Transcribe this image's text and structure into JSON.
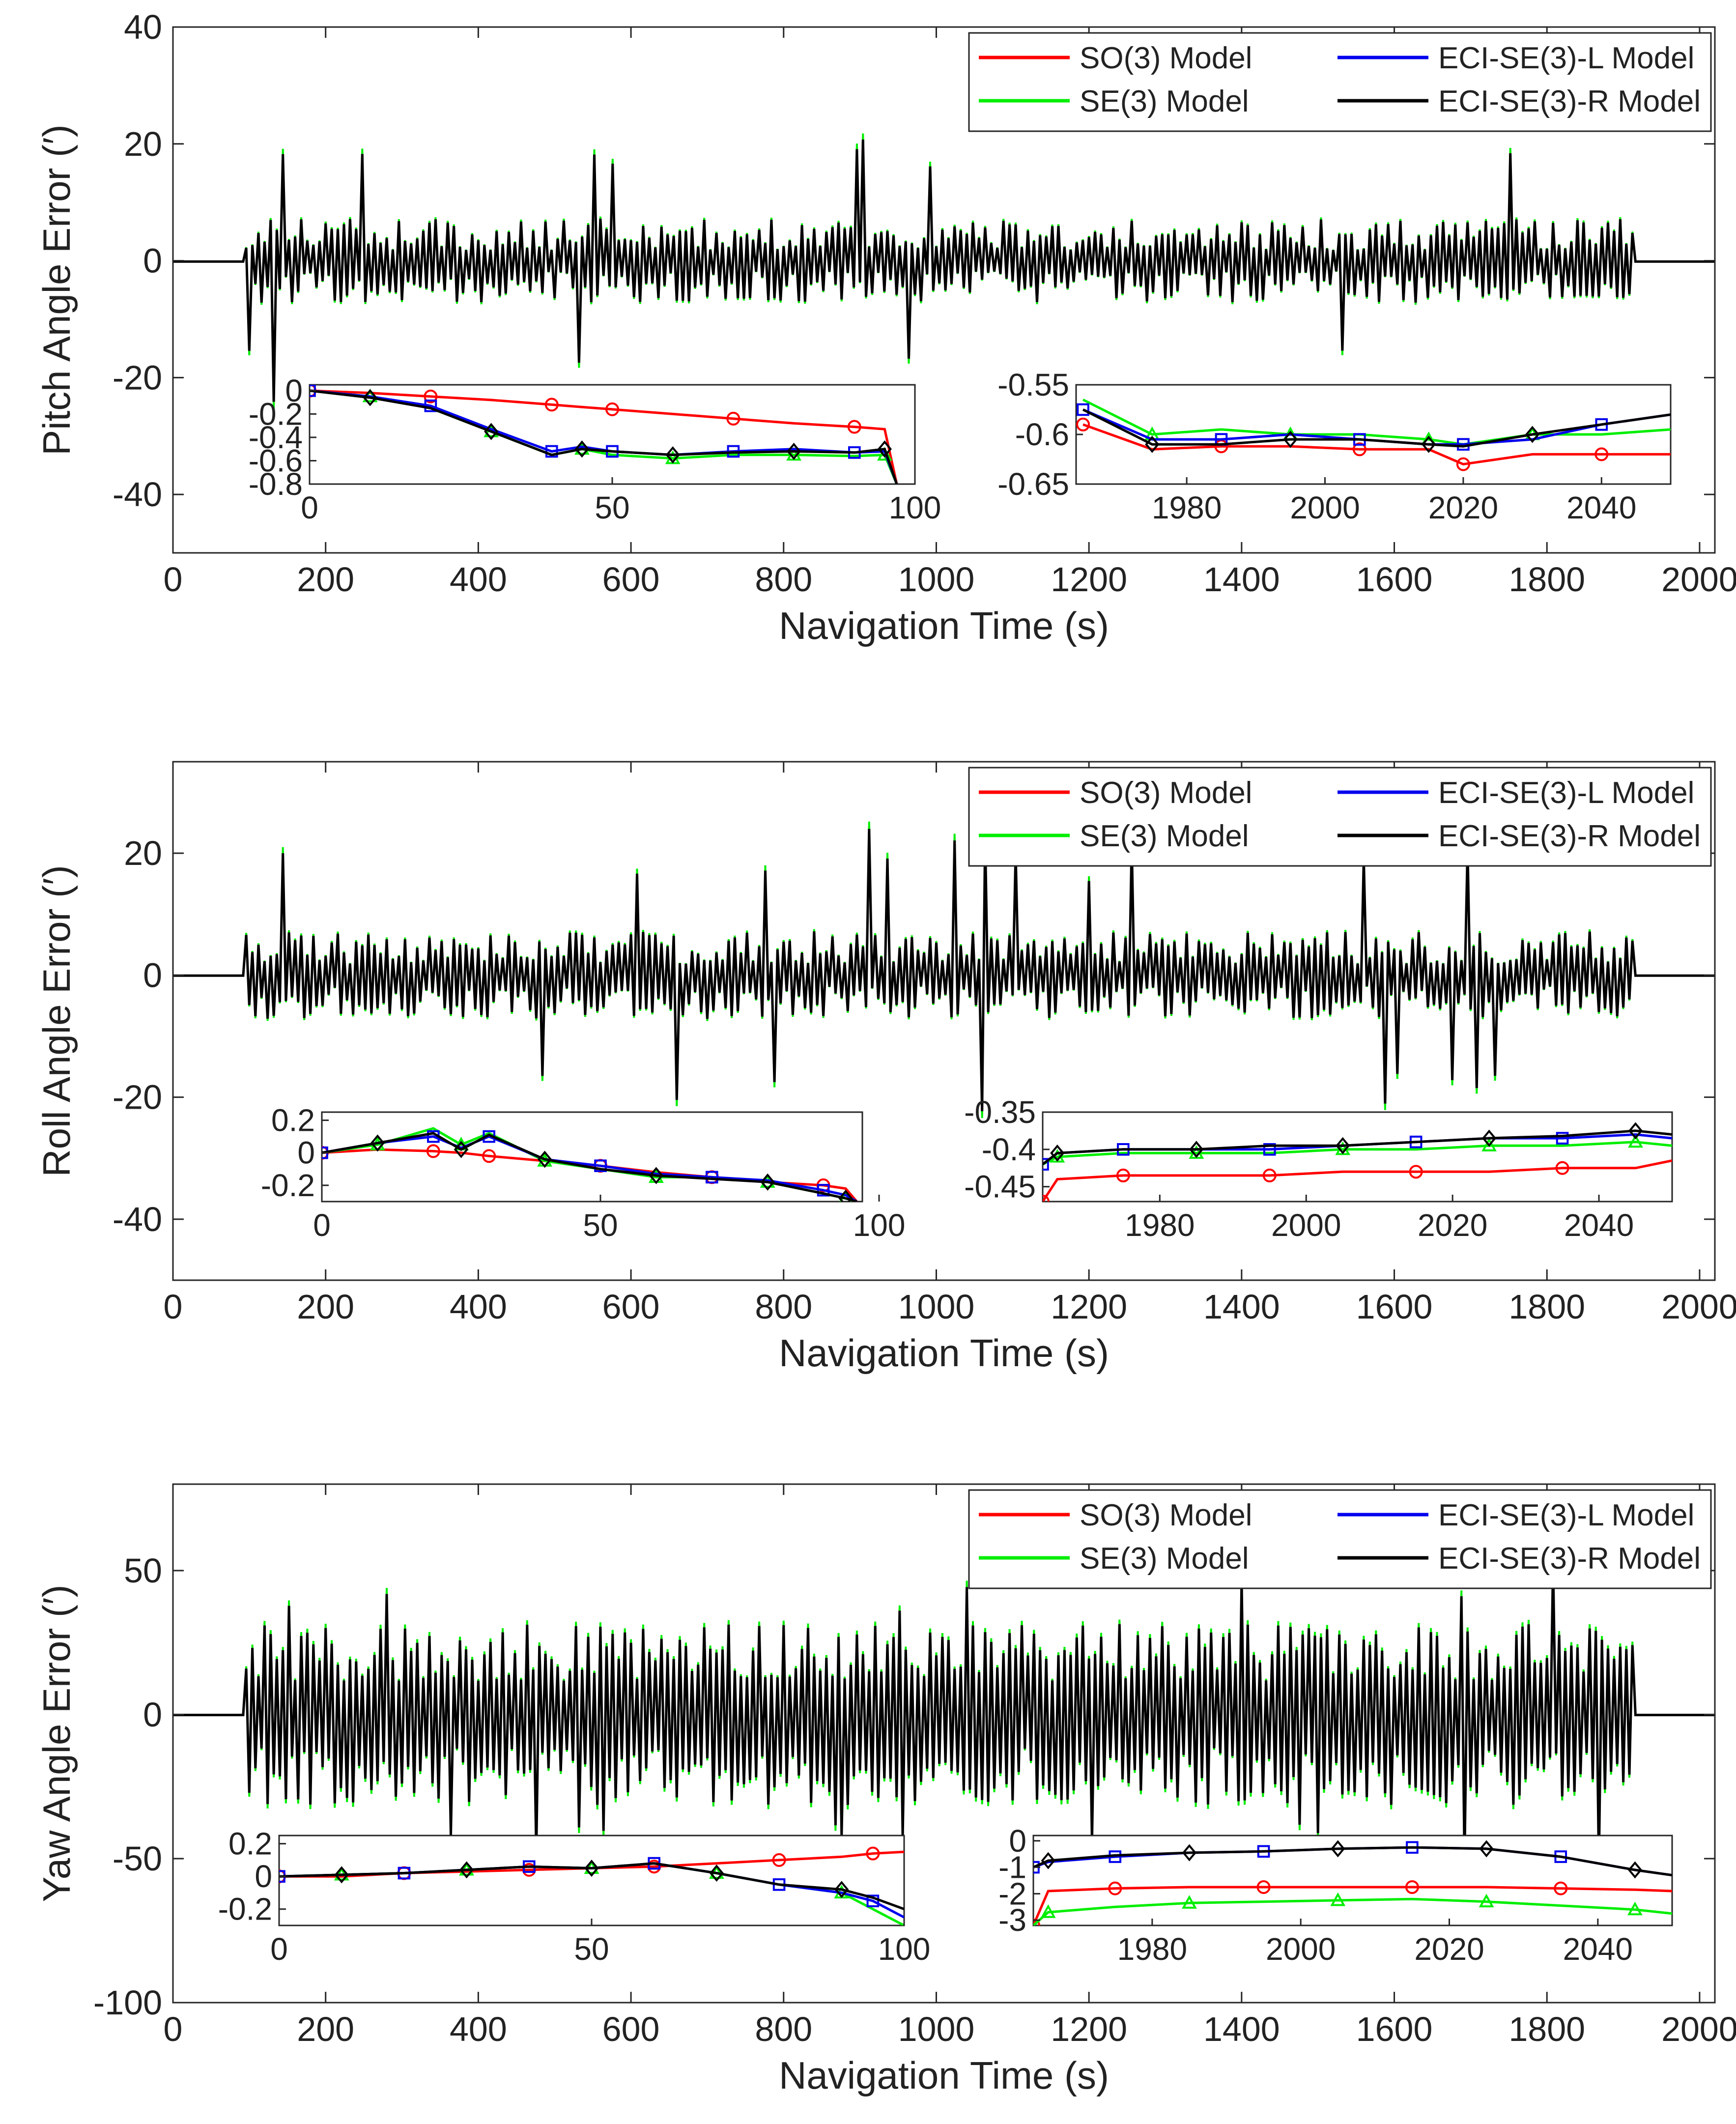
{
  "chart_data": [
    {
      "type": "line",
      "title": "",
      "xlabel": "Navigation Time (s)",
      "ylabel": "Pitch Angle Error (′)",
      "xlim": [
        0,
        2020
      ],
      "ylim": [
        -50,
        40
      ],
      "xticks": [
        0,
        200,
        400,
        600,
        800,
        1000,
        1200,
        1400,
        1600,
        1800,
        2000
      ],
      "yticks": [
        -40,
        -20,
        0,
        20,
        40
      ],
      "ytick_labels": [
        "-40",
        "-20",
        "0",
        "20",
        "40"
      ],
      "grid": false,
      "legend_position": "top-right",
      "legend": [
        "SO(3) Model",
        "SE(3) Model",
        "ECI-SE(3)-L Model",
        "ECI-SE(3)-R Model"
      ],
      "series_colors": [
        "#ff0000",
        "#00ee00",
        "#0000ee",
        "#000000"
      ],
      "oscillation": {
        "start": 95,
        "end": 1915,
        "typical_amplitude": 6,
        "peak_amplitude": 25,
        "min_trough": -22,
        "initial_offset": 0.5
      },
      "insets": [
        {
          "xlim": [
            0,
            100
          ],
          "ylim": [
            -0.8,
            0.05
          ],
          "xticks": [
            0,
            50,
            100
          ],
          "yticks": [
            0,
            -0.2,
            -0.4,
            -0.6,
            -0.8
          ],
          "ytick_labels": [
            "0",
            "-0.2",
            "-0.4",
            "-0.6",
            "-0.8"
          ],
          "x": [
            0,
            10,
            20,
            30,
            40,
            45,
            50,
            60,
            70,
            80,
            90,
            95,
            97
          ],
          "series": [
            {
              "name": "SO(3) Model",
              "values": [
                0,
                -0.02,
                -0.05,
                -0.08,
                -0.12,
                -0.14,
                -0.16,
                -0.2,
                -0.24,
                -0.28,
                -0.31,
                -0.33,
                -0.8
              ]
            },
            {
              "name": "SE(3) Model",
              "values": [
                0,
                -0.05,
                -0.15,
                -0.35,
                -0.55,
                -0.5,
                -0.55,
                -0.58,
                -0.55,
                -0.55,
                -0.56,
                -0.55,
                -0.8
              ]
            },
            {
              "name": "ECI-SE(3)-L Model",
              "values": [
                0,
                -0.05,
                -0.13,
                -0.33,
                -0.52,
                -0.48,
                -0.52,
                -0.55,
                -0.52,
                -0.5,
                -0.53,
                -0.52,
                -0.8
              ]
            },
            {
              "name": "ECI-SE(3)-R Model",
              "values": [
                0,
                -0.06,
                -0.15,
                -0.35,
                -0.55,
                -0.5,
                -0.52,
                -0.55,
                -0.53,
                -0.52,
                -0.53,
                -0.5,
                -0.8
              ]
            }
          ]
        },
        {
          "xlim": [
            1964,
            2050
          ],
          "ylim": [
            -0.65,
            -0.55
          ],
          "xticks": [
            1980,
            2000,
            2020,
            2040
          ],
          "yticks": [
            -0.55,
            -0.6,
            -0.65
          ],
          "ytick_labels": [
            "-0.55",
            "-0.6",
            "-0.65"
          ],
          "x": [
            1965,
            1975,
            1985,
            1995,
            2005,
            2015,
            2020,
            2030,
            2040,
            2050
          ],
          "series": [
            {
              "name": "SO(3) Model",
              "values": [
                -0.59,
                -0.615,
                -0.612,
                -0.612,
                -0.615,
                -0.615,
                -0.63,
                -0.62,
                -0.62,
                -0.62
              ]
            },
            {
              "name": "SE(3) Model",
              "values": [
                -0.565,
                -0.6,
                -0.595,
                -0.6,
                -0.6,
                -0.605,
                -0.61,
                -0.6,
                -0.6,
                -0.595
              ]
            },
            {
              "name": "ECI-SE(3)-L Model",
              "values": [
                -0.575,
                -0.605,
                -0.605,
                -0.6,
                -0.605,
                -0.61,
                -0.61,
                -0.605,
                -0.59,
                -0.58
              ]
            },
            {
              "name": "ECI-SE(3)-R Model",
              "values": [
                -0.575,
                -0.61,
                -0.61,
                -0.605,
                -0.605,
                -0.61,
                -0.612,
                -0.6,
                -0.59,
                -0.58
              ]
            }
          ]
        }
      ]
    },
    {
      "type": "line",
      "title": "",
      "xlabel": "Navigation Time (s)",
      "ylabel": "Roll Angle Error (′)",
      "xlim": [
        0,
        2020
      ],
      "ylim": [
        -50,
        35
      ],
      "xticks": [
        0,
        200,
        400,
        600,
        800,
        1000,
        1200,
        1400,
        1600,
        1800,
        2000
      ],
      "yticks": [
        -40,
        -20,
        0,
        20
      ],
      "ytick_labels": [
        "-40",
        "-20",
        "0",
        "20"
      ],
      "grid": false,
      "legend_position": "top-right",
      "legend": [
        "SO(3) Model",
        "SE(3) Model",
        "ECI-SE(3)-L Model",
        "ECI-SE(3)-R Model"
      ],
      "series_colors": [
        "#ff0000",
        "#00ee00",
        "#0000ee",
        "#000000"
      ],
      "oscillation": {
        "start": 95,
        "end": 1915,
        "typical_amplitude": 6,
        "peak_amplitude": 24,
        "min_trough": -23,
        "initial_offset": 0.2
      },
      "insets": [
        {
          "xlim": [
            0,
            97
          ],
          "ylim": [
            -0.3,
            0.25
          ],
          "xticks": [
            0,
            50,
            100
          ],
          "yticks": [
            0.2,
            0,
            -0.2
          ],
          "ytick_labels": [
            "0.2",
            "0",
            "-0.2"
          ],
          "x": [
            0,
            10,
            20,
            25,
            30,
            40,
            50,
            60,
            70,
            80,
            90,
            94,
            96
          ],
          "series": [
            {
              "name": "SO(3) Model",
              "values": [
                0,
                0.02,
                0.01,
                0,
                -0.02,
                -0.05,
                -0.08,
                -0.12,
                -0.15,
                -0.18,
                -0.2,
                -0.22,
                -0.3
              ]
            },
            {
              "name": "SE(3) Model",
              "values": [
                0,
                0.05,
                0.15,
                0.05,
                0.12,
                -0.05,
                -0.1,
                -0.15,
                -0.15,
                -0.18,
                -0.25,
                -0.28,
                -0.3
              ]
            },
            {
              "name": "ECI-SE(3)-L Model",
              "values": [
                0,
                0.06,
                0.1,
                0.03,
                0.1,
                -0.04,
                -0.08,
                -0.13,
                -0.15,
                -0.17,
                -0.23,
                -0.26,
                -0.3
              ]
            },
            {
              "name": "ECI-SE(3)-R Model",
              "values": [
                0,
                0.06,
                0.12,
                0.02,
                0.11,
                -0.04,
                -0.1,
                -0.14,
                -0.16,
                -0.18,
                -0.25,
                -0.28,
                -0.3
              ]
            }
          ]
        },
        {
          "xlim": [
            1964,
            2050
          ],
          "ylim": [
            -0.47,
            -0.35
          ],
          "xticks": [
            1980,
            2000,
            2020,
            2040
          ],
          "yticks": [
            -0.35,
            -0.4,
            -0.45
          ],
          "ytick_labels": [
            "-0.35",
            "-0.4",
            "-0.45"
          ],
          "x": [
            1964,
            1966,
            1975,
            1985,
            1995,
            2005,
            2015,
            2025,
            2035,
            2045,
            2050
          ],
          "series": [
            {
              "name": "SO(3) Model",
              "values": [
                -0.47,
                -0.44,
                -0.435,
                -0.435,
                -0.435,
                -0.43,
                -0.43,
                -0.43,
                -0.425,
                -0.425,
                -0.415
              ]
            },
            {
              "name": "SE(3) Model",
              "values": [
                -0.42,
                -0.41,
                -0.405,
                -0.405,
                -0.405,
                -0.4,
                -0.4,
                -0.395,
                -0.395,
                -0.39,
                -0.395
              ]
            },
            {
              "name": "ECI-SE(3)-L Model",
              "values": [
                -0.42,
                -0.405,
                -0.4,
                -0.4,
                -0.4,
                -0.395,
                -0.39,
                -0.385,
                -0.385,
                -0.38,
                -0.385
              ]
            },
            {
              "name": "ECI-SE(3)-R Model",
              "values": [
                -0.42,
                -0.405,
                -0.4,
                -0.4,
                -0.395,
                -0.395,
                -0.39,
                -0.385,
                -0.382,
                -0.375,
                -0.38
              ]
            }
          ]
        }
      ]
    },
    {
      "type": "line",
      "title": "",
      "xlabel": "Navigation Time (s)",
      "ylabel": "Yaw Angle Error (′)",
      "xlim": [
        0,
        2020
      ],
      "ylim": [
        -100,
        80
      ],
      "xticks": [
        0,
        200,
        400,
        600,
        800,
        1000,
        1200,
        1400,
        1600,
        1800,
        2000
      ],
      "yticks": [
        -100,
        -50,
        0,
        50
      ],
      "ytick_labels": [
        "-100",
        "-50",
        "0",
        "50"
      ],
      "grid": false,
      "legend_position": "top-right",
      "legend": [
        "SO(3) Model",
        "SE(3) Model",
        "ECI-SE(3)-L Model",
        "ECI-SE(3)-R Model"
      ],
      "series_colors": [
        "#ff0000",
        "#00ee00",
        "#0000ee",
        "#000000"
      ],
      "oscillation": {
        "start": 95,
        "end": 1915,
        "typical_amplitude": 22,
        "peak_amplitude": 50,
        "min_trough": -45,
        "initial_offset": 0.5
      },
      "insets": [
        {
          "xlim": [
            0,
            100
          ],
          "ylim": [
            -0.3,
            0.25
          ],
          "xticks": [
            0,
            50,
            100
          ],
          "yticks": [
            0.2,
            0,
            -0.2
          ],
          "ytick_labels": [
            "0.2",
            "0",
            "-0.2"
          ],
          "x": [
            0,
            10,
            20,
            30,
            40,
            50,
            60,
            70,
            80,
            90,
            95,
            100
          ],
          "series": [
            {
              "name": "SO(3) Model",
              "values": [
                0,
                0,
                0.02,
                0.03,
                0.04,
                0.05,
                0.06,
                0.08,
                0.1,
                0.12,
                0.14,
                0.15
              ]
            },
            {
              "name": "SE(3) Model",
              "values": [
                0,
                0.01,
                0.02,
                0.04,
                0.06,
                0.05,
                0.08,
                0.02,
                -0.05,
                -0.1,
                -0.2,
                -0.3
              ]
            },
            {
              "name": "ECI-SE(3)-L Model",
              "values": [
                0,
                0.01,
                0.02,
                0.04,
                0.06,
                0.05,
                0.08,
                0.02,
                -0.05,
                -0.1,
                -0.15,
                -0.25
              ]
            },
            {
              "name": "ECI-SE(3)-R Model",
              "values": [
                0,
                0.01,
                0.02,
                0.04,
                0.06,
                0.05,
                0.08,
                0.02,
                -0.05,
                -0.08,
                -0.13,
                -0.2
              ]
            }
          ]
        },
        {
          "xlim": [
            1964,
            2050
          ],
          "ylim": [
            -3.2,
            0.2
          ],
          "xticks": [
            1980,
            2000,
            2020,
            2040
          ],
          "yticks": [
            0,
            -1,
            -2,
            -3
          ],
          "ytick_labels": [
            "0",
            "-1",
            "-2",
            "-3"
          ],
          "x": [
            1964,
            1966,
            1975,
            1985,
            1995,
            2005,
            2015,
            2025,
            2035,
            2045,
            2050
          ],
          "series": [
            {
              "name": "SO(3) Model",
              "values": [
                -3.2,
                -1.9,
                -1.8,
                -1.75,
                -1.75,
                -1.75,
                -1.75,
                -1.75,
                -1.8,
                -1.85,
                -1.9
              ]
            },
            {
              "name": "SE(3) Model",
              "values": [
                -3.2,
                -2.7,
                -2.5,
                -2.35,
                -2.3,
                -2.25,
                -2.2,
                -2.3,
                -2.45,
                -2.6,
                -2.75
              ]
            },
            {
              "name": "ECI-SE(3)-L Model",
              "values": [
                -1.0,
                -0.8,
                -0.6,
                -0.45,
                -0.4,
                -0.3,
                -0.25,
                -0.3,
                -0.6,
                -1.1,
                -1.3
              ]
            },
            {
              "name": "ECI-SE(3)-R Model",
              "values": [
                -1.0,
                -0.75,
                -0.55,
                -0.45,
                -0.4,
                -0.3,
                -0.25,
                -0.3,
                -0.6,
                -1.1,
                -1.3
              ]
            }
          ]
        }
      ]
    }
  ]
}
